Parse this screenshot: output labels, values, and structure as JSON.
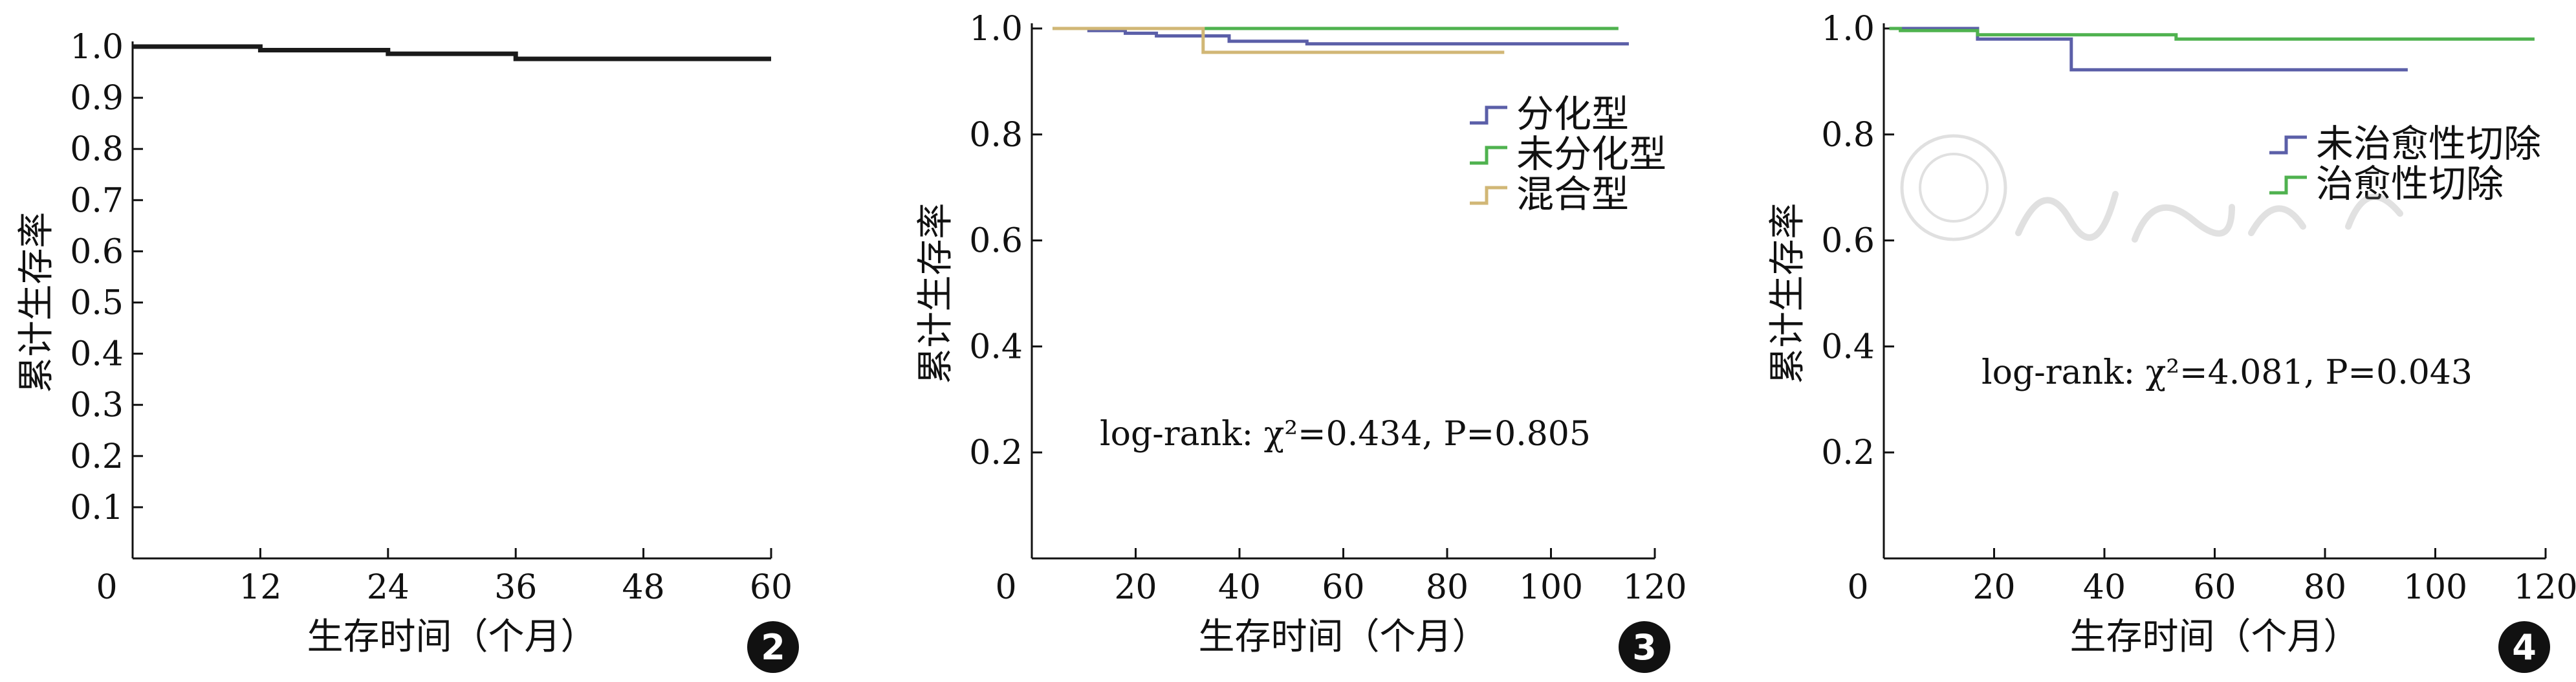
{
  "figure_panels": [
    "2",
    "3",
    "4"
  ],
  "chart_data": [
    {
      "panel": "2",
      "type": "line",
      "step": true,
      "xlabel": "生存时间（个月）",
      "ylabel": "累计生存率",
      "xlim": [
        0,
        60
      ],
      "ylim": [
        0,
        1.0
      ],
      "x_ticks": [
        "0",
        "12",
        "24",
        "36",
        "48",
        "60"
      ],
      "y_ticks": [
        "0.1",
        "0.2",
        "0.3",
        "0.4",
        "0.5",
        "0.6",
        "0.7",
        "0.8",
        "0.9",
        "1.0"
      ],
      "series": [
        {
          "color": "#1a1a1a",
          "points": [
            [
              0,
              1.0
            ],
            [
              12,
              1.0
            ],
            [
              12,
              0.993
            ],
            [
              24,
              0.993
            ],
            [
              24,
              0.986
            ],
            [
              36,
              0.986
            ],
            [
              36,
              0.976
            ],
            [
              60,
              0.976
            ]
          ]
        }
      ],
      "annotation": ""
    },
    {
      "panel": "3",
      "type": "line",
      "step": true,
      "xlabel": "生存时间（个月）",
      "ylabel": "累计生存率",
      "xlim": [
        0,
        120
      ],
      "ylim": [
        0,
        1.0
      ],
      "x_ticks": [
        "0",
        "20",
        "40",
        "60",
        "80",
        "100",
        "120"
      ],
      "y_ticks": [
        "0.2",
        "0.4",
        "0.6",
        "0.8",
        "1.0"
      ],
      "series": [
        {
          "name": "分化型",
          "color": "#5b5fa8",
          "points": [
            [
              4,
              1.0
            ],
            [
              11,
              1.0
            ],
            [
              11,
              0.996
            ],
            [
              18,
              0.996
            ],
            [
              18,
              0.991
            ],
            [
              24,
              0.991
            ],
            [
              24,
              0.986
            ],
            [
              38,
              0.986
            ],
            [
              38,
              0.976
            ],
            [
              53,
              0.976
            ],
            [
              53,
              0.971
            ],
            [
              115,
              0.971
            ]
          ]
        },
        {
          "name": "未分化型",
          "color": "#4fb24f",
          "points": [
            [
              4,
              1.0
            ],
            [
              113,
              1.0
            ]
          ]
        },
        {
          "name": "混合型",
          "color": "#d1b776",
          "points": [
            [
              4,
              1.0
            ],
            [
              33,
              1.0
            ],
            [
              33,
              0.955
            ],
            [
              91,
              0.955
            ]
          ]
        }
      ],
      "legend_position": "right",
      "annotation": "log-rank: χ²=0.434, P=0.805"
    },
    {
      "panel": "4",
      "type": "line",
      "step": true,
      "xlabel": "生存时间（个月）",
      "ylabel": "累计生存率",
      "xlim": [
        0,
        120
      ],
      "ylim": [
        0,
        1.0
      ],
      "x_ticks": [
        "0",
        "20",
        "40",
        "60",
        "80",
        "100",
        "120"
      ],
      "y_ticks": [
        "0.2",
        "0.4",
        "0.6",
        "0.8",
        "1.0"
      ],
      "series": [
        {
          "name": "未治愈性切除",
          "color": "#5b5fa8",
          "points": [
            [
              1,
              1.0
            ],
            [
              17,
              1.0
            ],
            [
              17,
              0.98
            ],
            [
              34,
              0.98
            ],
            [
              34,
              0.922
            ],
            [
              95,
              0.922
            ]
          ]
        },
        {
          "name": "治愈性切除",
          "color": "#4fb24f",
          "points": [
            [
              1,
              1.0
            ],
            [
              3,
              1.0
            ],
            [
              3,
              0.996
            ],
            [
              17,
              0.996
            ],
            [
              17,
              0.988
            ],
            [
              53,
              0.988
            ],
            [
              53,
              0.98
            ],
            [
              118,
              0.98
            ]
          ]
        }
      ],
      "legend_position": "right",
      "annotation": "log-rank: χ²=4.081, P=0.043"
    }
  ]
}
